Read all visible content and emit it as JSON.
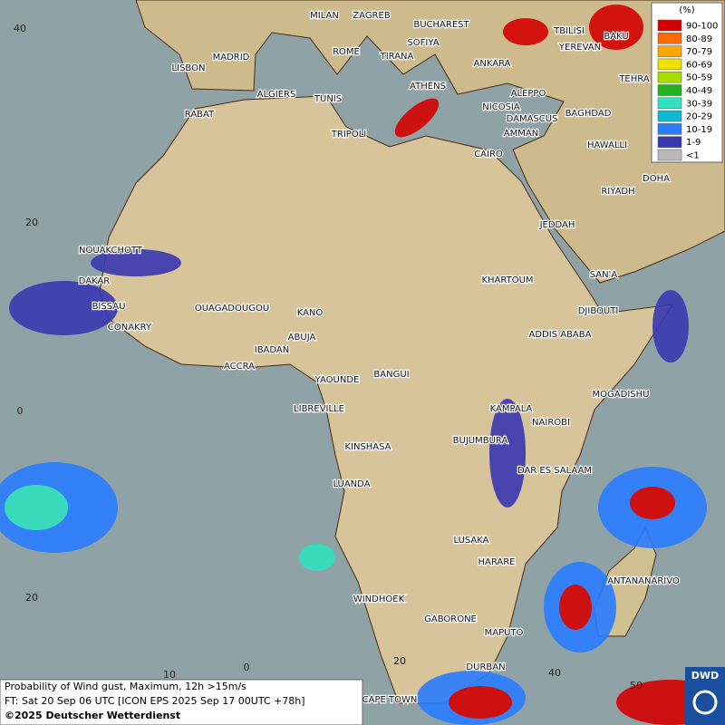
{
  "legend": {
    "unit": "(%)",
    "entries": [
      {
        "label": "90-100",
        "color": "#d40000"
      },
      {
        "label": "80-89",
        "color": "#ff6a00"
      },
      {
        "label": "70-79",
        "color": "#ffa500"
      },
      {
        "label": "60-69",
        "color": "#f0e000"
      },
      {
        "label": "50-59",
        "color": "#a8dc00"
      },
      {
        "label": "40-49",
        "color": "#20b020"
      },
      {
        "label": "30-39",
        "color": "#30e0c0"
      },
      {
        "label": "20-29",
        "color": "#10b8d0"
      },
      {
        "label": "10-19",
        "color": "#2a7cff"
      },
      {
        "label": "1-9",
        "color": "#3838b0"
      },
      {
        "label": "<1",
        "color": "#b8b8b8"
      }
    ]
  },
  "cities": [
    "MILAN",
    "ZAGREB",
    "BUCHAREST",
    "SOFIYA",
    "ROME",
    "TIRANA",
    "ANKARA",
    "TBILISI",
    "BAKU",
    "YEREVAN",
    "TEHRA",
    "LISBON",
    "MADRID",
    "ALGIERS",
    "TUNIS",
    "ATHENS",
    "ALEPPO",
    "NICOSIA",
    "BAGHDAD",
    "DAMASCUS",
    "AMMAN",
    "RABAT",
    "TRIPOLI",
    "CAIRO",
    "HAWALLI",
    "DOHA",
    "RIYADH",
    "JEDDAH",
    "NOUAKCHOTT",
    "SAN'A",
    "DAKAR",
    "KHARTOUM",
    "BISSAU",
    "OUAGADOUGOU",
    "KANO",
    "DJIBOUTI",
    "CONAKRY",
    "ABUJA",
    "ADDIS ABABA",
    "IBADAN",
    "ACCRA",
    "YAOUNDE",
    "BANGUI",
    "MOGADISHU",
    "LIBREVILLE",
    "KAMPALA",
    "NAIROBI",
    "BUJUMBURA",
    "KINSHASA",
    "DAR ES SALAAM",
    "LUANDA",
    "LUSAKA",
    "HARARE",
    "ANTANANARIVO",
    "WINDHOEK",
    "GABORONE",
    "MAPUTO",
    "DURBAN",
    "CAPE TOWN"
  ],
  "grid_labels": {
    "latitude": [
      "40",
      "20",
      "0",
      "20"
    ],
    "longitude": [
      "10",
      "0",
      "20",
      "40",
      "50"
    ]
  },
  "footer": {
    "lines": [
      "Probability of Wind gust, Maximum, 12h >15m/s",
      "FT: Sat 20 Sep 06 UTC [ICON EPS 2025 Sep 17 00UTC +78h]",
      "©2025 Deutscher Wetterdienst"
    ]
  },
  "logo": "DWD"
}
